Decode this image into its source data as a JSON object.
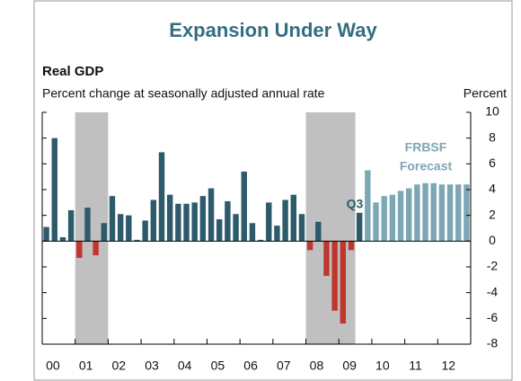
{
  "chart_data": {
    "type": "bar",
    "title": "Expansion Under Way",
    "subtitle_bold": "Real GDP",
    "subtitle": "Percent change at seasonally adjusted annual rate",
    "y_axis_label": "Percent",
    "annotations": [
      "Q3",
      "FRBSF",
      "Forecast"
    ],
    "categories": [
      "00",
      null,
      null,
      null,
      "01",
      null,
      null,
      null,
      "02",
      null,
      null,
      null,
      "03",
      null,
      null,
      null,
      "04",
      null,
      null,
      null,
      "05",
      null,
      null,
      null,
      "06",
      null,
      null,
      null,
      "07",
      null,
      null,
      null,
      "08",
      null,
      null,
      null,
      "09",
      null,
      null,
      null,
      "10",
      null,
      null,
      null,
      "11",
      null,
      null,
      null,
      "12",
      null,
      null,
      null
    ],
    "values": [
      1.1,
      8.0,
      0.3,
      2.4,
      -1.3,
      2.6,
      -1.1,
      1.4,
      3.5,
      2.1,
      2.0,
      0.1,
      1.6,
      3.2,
      6.9,
      3.6,
      2.9,
      2.9,
      3.0,
      3.5,
      4.1,
      1.7,
      3.1,
      2.1,
      5.4,
      1.4,
      0.1,
      3.0,
      1.2,
      3.2,
      3.6,
      2.1,
      -0.7,
      1.5,
      -2.7,
      -5.4,
      -6.4,
      -0.7,
      2.2,
      5.5,
      3.0,
      3.5,
      3.6,
      3.9,
      4.1,
      4.4,
      4.5,
      4.5,
      4.4,
      4.4,
      4.4,
      4.4
    ],
    "colors": [
      "#2e5b6b",
      "#2e5b6b",
      "#2e5b6b",
      "#2e5b6b",
      "#c0362c",
      "#2e5b6b",
      "#c0362c",
      "#2e5b6b",
      "#2e5b6b",
      "#2e5b6b",
      "#2e5b6b",
      "#2e5b6b",
      "#2e5b6b",
      "#2e5b6b",
      "#2e5b6b",
      "#2e5b6b",
      "#2e5b6b",
      "#2e5b6b",
      "#2e5b6b",
      "#2e5b6b",
      "#2e5b6b",
      "#2e5b6b",
      "#2e5b6b",
      "#2e5b6b",
      "#2e5b6b",
      "#2e5b6b",
      "#2e5b6b",
      "#2e5b6b",
      "#2e5b6b",
      "#2e5b6b",
      "#2e5b6b",
      "#2e5b6b",
      "#c0362c",
      "#2e5b6b",
      "#c0362c",
      "#c0362c",
      "#c0362c",
      "#c0362c",
      "#2e5b6b",
      "#7ea7b5",
      "#7ea7b5",
      "#7ea7b5",
      "#7ea7b5",
      "#7ea7b5",
      "#7ea7b5",
      "#7ea7b5",
      "#7ea7b5",
      "#7ea7b5",
      "#7ea7b5",
      "#7ea7b5",
      "#7ea7b5",
      "#7ea7b5"
    ],
    "shaded_ranges": [
      [
        4,
        7
      ],
      [
        32,
        37
      ]
    ],
    "shade_color": "#c0c0c0",
    "title_color": "#336e80",
    "forecast_color": "#7ea7b5",
    "ylim": [
      -8,
      10
    ],
    "yticks": [
      -8,
      -6,
      -4,
      -2,
      0,
      2,
      4,
      6,
      8,
      10
    ]
  }
}
